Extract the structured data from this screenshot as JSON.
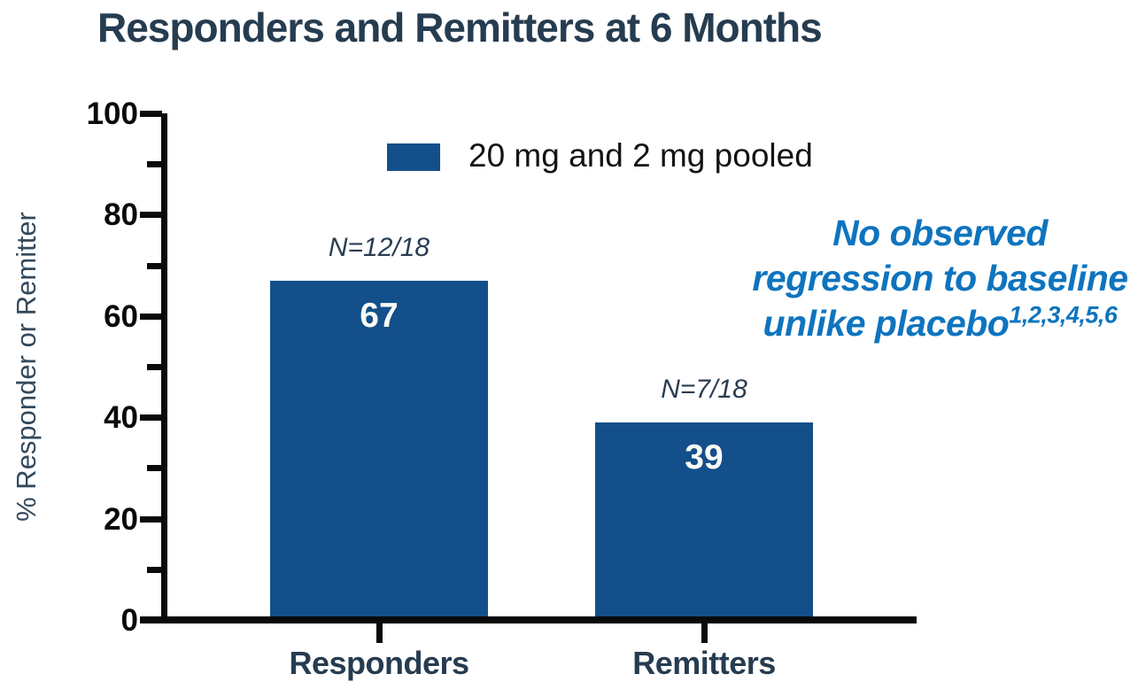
{
  "title": "Responders and Remitters at 6 Months",
  "legend": {
    "label": "20 mg and 2 mg pooled",
    "swatch_color": "#134f8b"
  },
  "annotation": {
    "lines": [
      "No observed",
      "regression to baseline",
      "unlike placebo"
    ],
    "superscript": "1,2,3,4,5,6",
    "color": "#0e74be"
  },
  "chart_data": {
    "type": "bar",
    "title": "Responders and Remitters at 6 Months",
    "categories": [
      "Responders",
      "Remitters"
    ],
    "series": [
      {
        "name": "20 mg and 2 mg pooled",
        "values": [
          67,
          39
        ]
      }
    ],
    "bar_value_labels": [
      "67",
      "39"
    ],
    "n_labels": [
      "N=12/18",
      "N=7/18"
    ],
    "xlabel": "",
    "ylabel": "% Responder or Remitter",
    "ylim": [
      0,
      100
    ],
    "y_major_ticks": [
      0,
      20,
      40,
      60,
      80,
      100
    ],
    "y_minor_ticks": [
      10,
      30,
      50,
      70,
      90
    ],
    "grid": false,
    "legend_position": "top-center",
    "bar_color": "#134f8b"
  },
  "colors": {
    "bar_blue": "#134f8b",
    "title_navy": "#263c50",
    "annotation_blue": "#0e74be",
    "axis_black": "#0a0a0a"
  }
}
